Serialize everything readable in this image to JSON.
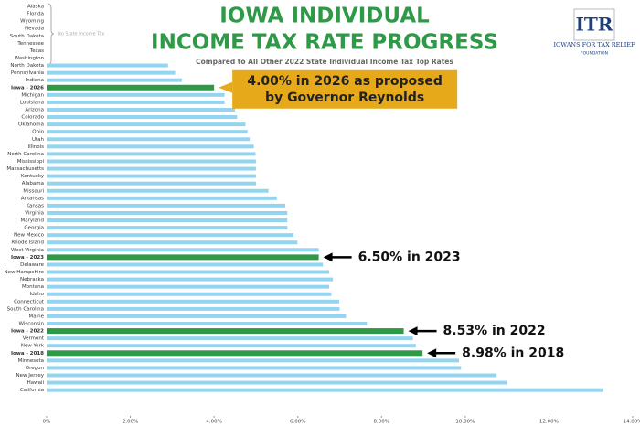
{
  "chart_data": {
    "type": "barh",
    "title_lines": [
      "IOWA INDIVIDUAL",
      "INCOME TAX RATE PROGRESS"
    ],
    "subtitle": "Compared to All Other 2022 State Individual Income Tax Top Rates",
    "bracket_label": "No State Income Tax",
    "logo": {
      "mark": "ITR",
      "name": "IOWANS FOR TAX RELIEF",
      "sub": "FOUNDATION"
    },
    "categories": [
      "Alaska",
      "Florida",
      "Wyoming",
      "Nevada",
      "South Dakota",
      "Tennessee",
      "Texas",
      "Washington",
      "North Dakota",
      "Pennsylvania",
      "Indiana",
      "Iowa - 2026",
      "Michigan",
      "Louisiana",
      "Arizona",
      "Colorado",
      "Oklahoma",
      "Ohio",
      "Utah",
      "Illinois",
      "North Carolina",
      "Mississippi",
      "Massachusetts",
      "Kentucky",
      "Alabama",
      "Missouri",
      "Arkansas",
      "Kansas",
      "Virginia",
      "Maryland",
      "Georgia",
      "New Mexico",
      "Rhode Island",
      "West Virginia",
      "Iowa - 2023",
      "Delaware",
      "New Hampshire",
      "Nebraska",
      "Montana",
      "Idaho",
      "Connecticut",
      "South Carolina",
      "Maine",
      "Wisconsin",
      "Iowa - 2022",
      "Vermont",
      "New York",
      "Iowa - 2018",
      "Minnesota",
      "Oregon",
      "New Jersey",
      "Hawaii",
      "California"
    ],
    "values": [
      0,
      0,
      0,
      0,
      0,
      0,
      0,
      0,
      2.9,
      3.07,
      3.23,
      4.0,
      4.25,
      4.25,
      4.5,
      4.55,
      4.75,
      4.8,
      4.85,
      4.95,
      4.99,
      5.0,
      5.0,
      5.0,
      5.0,
      5.3,
      5.5,
      5.7,
      5.75,
      5.75,
      5.75,
      5.9,
      5.99,
      6.5,
      6.5,
      6.6,
      6.75,
      6.84,
      6.75,
      6.8,
      6.99,
      7.0,
      7.15,
      7.65,
      8.53,
      8.75,
      8.82,
      8.98,
      9.85,
      9.9,
      10.75,
      11.0,
      13.3
    ],
    "color": "#93d5f0",
    "highlight_color": "#2e9a47",
    "highlight": [
      "Iowa - 2026",
      "Iowa - 2023",
      "Iowa - 2022",
      "Iowa - 2018"
    ],
    "annotations": [
      {
        "lines": [
          "4.00% in 2026 as proposed",
          "by Governor Reynolds"
        ],
        "category": "Iowa - 2026",
        "box_color": "#e6a919"
      },
      {
        "lines": [
          "6.50% in 2023"
        ],
        "category": "Iowa - 2023"
      },
      {
        "lines": [
          "8.53% in 2022"
        ],
        "category": "Iowa - 2022"
      },
      {
        "lines": [
          "8.98% in 2018"
        ],
        "category": "Iowa - 2018"
      }
    ],
    "xlim": [
      0,
      14
    ],
    "xticks": [
      {
        "value": 0,
        "label": "0%"
      },
      {
        "value": 2,
        "label": "2.00%"
      },
      {
        "value": 4,
        "label": "4.00%"
      },
      {
        "value": 6,
        "label": "6.00%"
      },
      {
        "value": 8,
        "label": "8.00%"
      },
      {
        "value": 10,
        "label": "10.00%"
      },
      {
        "value": 12,
        "label": "12.00%"
      },
      {
        "value": 14,
        "label": "14.00%"
      }
    ]
  }
}
